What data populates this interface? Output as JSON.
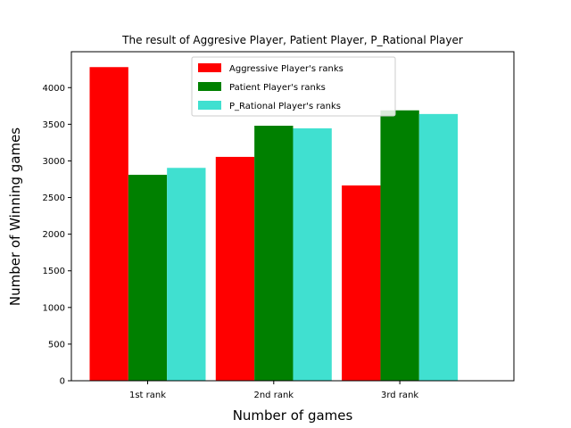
{
  "chart_data": {
    "type": "bar",
    "title": "The result of Aggresive Player, Patient Player, P_Rational Player",
    "xlabel": "Number of games",
    "ylabel": "Number of Winning games",
    "categories": [
      "1st rank",
      "2nd rank",
      "3rd rank"
    ],
    "series": [
      {
        "name": "Aggressive Player's ranks",
        "color": "#ff0000",
        "values": [
          4280,
          3055,
          2665
        ]
      },
      {
        "name": "Patient Player's ranks",
        "color": "#008000",
        "values": [
          2810,
          3480,
          3690
        ]
      },
      {
        "name": "P_Rational Player's ranks",
        "color": "#40e0d0",
        "values": [
          2905,
          3445,
          3640
        ]
      }
    ],
    "ylim": [
      0,
      4490
    ],
    "yticks": [
      0,
      500,
      1000,
      1500,
      2000,
      2500,
      3000,
      3500,
      4000
    ],
    "grid": false,
    "legend_position": "top-center"
  }
}
